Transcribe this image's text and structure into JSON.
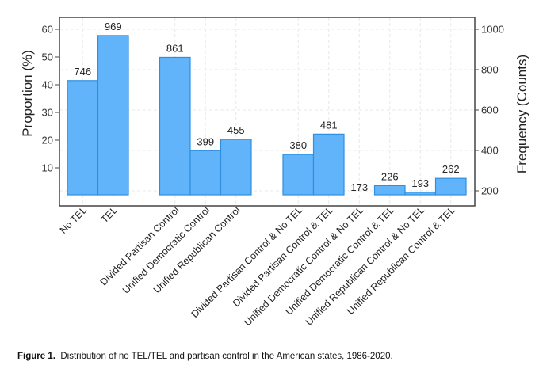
{
  "caption": {
    "label": "Figure 1.",
    "text": "Distribution of no TEL/TEL and partisan control in the American states, 1986-2020."
  },
  "chart_data": {
    "type": "bar",
    "categories": [
      "No TEL",
      "TEL",
      "Divided Partisan Control",
      "Unified Democratic Control",
      "Unified Republican Control",
      "Divided Partisan Control & No TEL",
      "Divided Partisan Control & TEL",
      "Unified Democratic Control & No TEL",
      "Unified Democratic Control & TEL",
      "Unified Republican Control & No TEL",
      "Unified Republican Control & TEL"
    ],
    "groups": [
      [
        0,
        1
      ],
      [
        2,
        3,
        4
      ],
      [
        5,
        6,
        7,
        8,
        9,
        10
      ]
    ],
    "values": [
      746,
      969,
      861,
      399,
      455,
      380,
      481,
      173,
      226,
      193,
      262
    ],
    "data_labels": [
      "746",
      "969",
      "861",
      "399",
      "455",
      "380",
      "481",
      "173",
      "226",
      "193",
      "262"
    ],
    "ylabel": "Proportion (%)",
    "y2label": "Frequency (Counts)",
    "y_ticks": [
      "10",
      "20",
      "30",
      "40",
      "50",
      "60"
    ],
    "y2_ticks": [
      "200",
      "400",
      "600",
      "800",
      "1000"
    ],
    "y2lim": [
      170,
      1040
    ],
    "grid": true,
    "colors": {
      "bar_fill": "#61b4f9",
      "bar_stroke": "#2f8fde",
      "grid": "#e8e8e8",
      "axis": "#444444"
    }
  }
}
